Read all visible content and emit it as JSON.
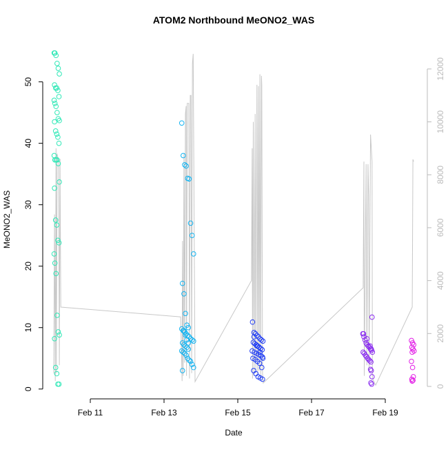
{
  "chart_data": {
    "type": "scatter",
    "title": "ATOM2 Northbound MeONO2_WAS",
    "x_label": "Date",
    "y_label": "MeONO2_WAS",
    "xlim": [
      9.71,
      20.14
    ],
    "ylim": [
      -1.6,
      54.9
    ],
    "y2lim": [
      -470,
      12650
    ],
    "xticks": [
      {
        "value": 11,
        "label": "Feb 11"
      },
      {
        "value": 13,
        "label": "Feb 13"
      },
      {
        "value": 15,
        "label": "Feb 15"
      },
      {
        "value": 17,
        "label": "Feb 17"
      },
      {
        "value": 19,
        "label": "Feb 19"
      }
    ],
    "yticks": [
      0,
      10,
      20,
      30,
      40,
      50
    ],
    "y2ticks": [
      0,
      2000,
      4000,
      6000,
      8000,
      10000,
      12000
    ],
    "series": [
      {
        "color": "#2ee8b6",
        "x": [
          10.02,
          10.04,
          10.07,
          10.1,
          10.13,
          10.16,
          10.03,
          10.06,
          10.09,
          10.12,
          10.15,
          10.02,
          10.04,
          10.07,
          10.1,
          10.13,
          10.16,
          10.03,
          10.06,
          10.09,
          10.12,
          10.15,
          10.02,
          10.04,
          10.07,
          10.1,
          10.13,
          10.16,
          10.03,
          10.06,
          10.09,
          10.12,
          10.15,
          10.02,
          10.04,
          10.07,
          10.1,
          10.13,
          10.16,
          10.03,
          10.06,
          10.09,
          10.12,
          10.15
        ],
        "values": [
          54.7,
          54.7,
          54.3,
          53.0,
          52.2,
          51.3,
          49.5,
          49.0,
          49.0,
          48.6,
          47.6,
          47.0,
          46.5,
          46.0,
          45.0,
          44.0,
          43.7,
          43.5,
          42.0,
          41.5,
          41.0,
          40.0,
          38.0,
          37.3,
          37.3,
          37.3,
          36.7,
          33.7,
          32.7,
          27.5,
          26.7,
          24.2,
          23.8,
          22.0,
          20.5,
          18.8,
          12.0,
          9.3,
          8.8,
          8.2,
          3.5,
          2.5,
          0.8,
          0.8
        ]
      },
      {
        "color": "#12b4f2",
        "x": [
          13.48,
          13.52,
          13.56,
          13.6,
          13.64,
          13.68,
          13.72,
          13.76,
          13.8,
          13.5,
          13.54,
          13.58,
          13.62,
          13.66,
          13.48,
          13.52,
          13.56,
          13.6,
          13.64,
          13.68,
          13.72,
          13.76,
          13.8,
          13.5,
          13.54,
          13.58,
          13.62,
          13.66,
          13.48,
          13.52,
          13.56,
          13.6,
          13.64,
          13.68,
          13.72,
          13.76,
          13.8,
          13.5,
          13.54,
          13.58,
          13.62,
          13.66
        ],
        "values": [
          43.3,
          38.0,
          36.5,
          36.3,
          34.3,
          34.2,
          27.0,
          25.0,
          22.0,
          17.2,
          15.5,
          12.3,
          10.4,
          10.0,
          9.8,
          9.5,
          9.3,
          9.0,
          8.7,
          8.5,
          8.2,
          8.0,
          7.8,
          7.5,
          7.2,
          7.0,
          6.8,
          6.5,
          6.2,
          6.0,
          5.8,
          5.5,
          5.0,
          4.7,
          4.5,
          4.0,
          3.5,
          3.0,
          9.5,
          8.8,
          8.0,
          7.5
        ]
      },
      {
        "color": "#1f3cf5",
        "x": [
          15.4,
          15.44,
          15.48,
          15.52,
          15.56,
          15.6,
          15.64,
          15.68,
          15.42,
          15.46,
          15.5,
          15.54,
          15.58,
          15.62,
          15.66,
          15.39,
          15.45,
          15.51,
          15.57,
          15.63,
          15.67,
          15.41,
          15.47,
          15.53,
          15.59,
          15.65,
          15.43,
          15.49,
          15.55,
          15.61,
          15.67,
          15.44,
          15.52,
          15.6,
          15.68
        ],
        "values": [
          10.9,
          9.2,
          9.0,
          8.7,
          8.5,
          8.2,
          8.0,
          7.8,
          7.6,
          7.4,
          7.2,
          7.0,
          6.8,
          6.6,
          6.4,
          6.2,
          6.0,
          5.8,
          5.6,
          5.4,
          5.2,
          5.0,
          4.8,
          4.5,
          4.2,
          3.5,
          3.0,
          2.5,
          2.0,
          1.8,
          1.6,
          8.5,
          7.0,
          6.0,
          5.0
        ]
      },
      {
        "color": "#8a2cf0",
        "x": [
          18.39,
          18.42,
          18.45,
          18.48,
          18.51,
          18.54,
          18.57,
          18.6,
          18.63,
          18.4,
          18.43,
          18.46,
          18.49,
          18.52,
          18.55,
          18.58,
          18.61,
          18.64,
          18.41,
          18.5,
          18.59,
          18.62,
          18.65,
          18.6,
          18.62,
          18.64,
          18.61,
          18.63
        ],
        "values": [
          9.0,
          8.5,
          8.0,
          7.5,
          7.2,
          7.0,
          6.8,
          6.5,
          6.3,
          6.0,
          5.8,
          5.5,
          5.3,
          5.0,
          4.8,
          4.6,
          4.4,
          11.7,
          9.0,
          8.2,
          7.0,
          6.5,
          6.0,
          3.2,
          3.0,
          2.0,
          1.0,
          0.8
        ]
      },
      {
        "color": "#e21ee6",
        "x": [
          19.71,
          19.74,
          19.77,
          19.72,
          19.75,
          19.78,
          19.73,
          19.71,
          19.74,
          19.76,
          19.72,
          19.75,
          19.73
        ],
        "values": [
          7.9,
          7.5,
          7.2,
          6.8,
          6.5,
          6.2,
          6.0,
          4.5,
          3.5,
          2.0,
          1.6,
          1.4,
          1.3
        ]
      },
      {
        "type": "line",
        "axis": "y2",
        "color": "#c8c8c8",
        "x": [
          10.01,
          10.03,
          10.05,
          10.07,
          10.08,
          10.1,
          10.14,
          10.16,
          10.18,
          10.2,
          13.45,
          13.49,
          13.5,
          13.52,
          13.54,
          13.56,
          13.58,
          13.6,
          13.61,
          13.63,
          13.67,
          13.69,
          13.71,
          13.73,
          13.75,
          13.77,
          13.79,
          13.84,
          15.37,
          15.39,
          15.4,
          15.42,
          15.44,
          15.47,
          15.49,
          15.52,
          15.54,
          15.56,
          15.58,
          15.6,
          15.62,
          15.64,
          15.65,
          15.67,
          15.69,
          18.4,
          18.42,
          18.43,
          18.48,
          18.5,
          18.53,
          18.55,
          18.56,
          18.6,
          18.62,
          18.64,
          18.65,
          18.74,
          19.73,
          19.75,
          19.77
        ],
        "values": [
          500,
          6500,
          200,
          9000,
          500,
          8800,
          8500,
          800,
          8600,
          3000,
          2630,
          200,
          5500,
          400,
          8800,
          900,
          10300,
          10600,
          400,
          10700,
          10700,
          300,
          11000,
          11000,
          500,
          12200,
          12570,
          180,
          4000,
          9000,
          300,
          10000,
          400,
          10300,
          500,
          11400,
          400,
          11350,
          600,
          11800,
          300,
          11740,
          11400,
          500,
          130,
          3730,
          8500,
          400,
          8400,
          800,
          8400,
          7200,
          500,
          9520,
          9000,
          8500,
          300,
          50,
          3000,
          8580,
          8500
        ]
      }
    ]
  }
}
